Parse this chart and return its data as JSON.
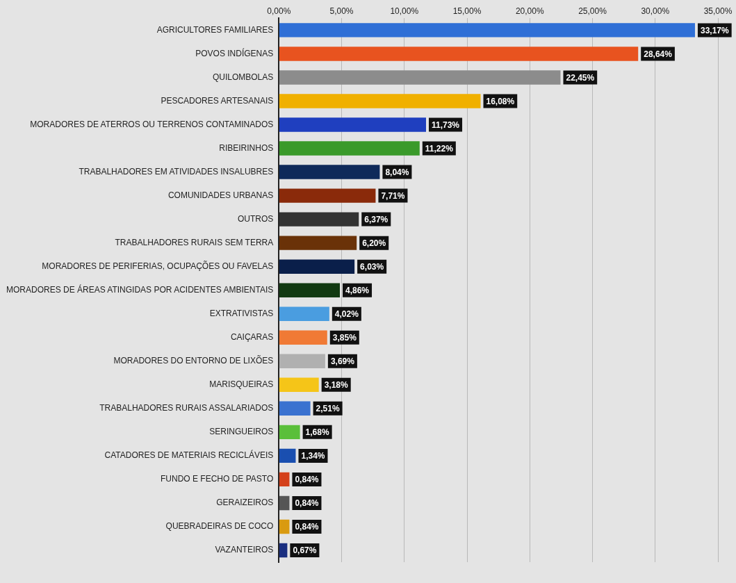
{
  "chart_data": {
    "type": "bar",
    "orientation": "horizontal",
    "categories": [
      "AGRICULTORES FAMILIARES",
      "POVOS INDÍGENAS",
      "QUILOMBOLAS",
      "PESCADORES ARTESANAIS",
      "MORADORES DE ATERROS OU TERRENOS CONTAMINADOS",
      "RIBEIRINHOS",
      "TRABALHADORES EM ATIVIDADES INSALUBRES",
      "COMUNIDADES URBANAS",
      "OUTROS",
      "TRABALHADORES RURAIS SEM TERRA",
      "MORADORES DE PERIFERIAS, OCUPAÇÕES OU FAVELAS",
      "MORADORES DE ÁREAS ATINGIDAS POR ACIDENTES AMBIENTAIS",
      "EXTRATIVISTAS",
      "CAIÇARAS",
      "MORADORES DO ENTORNO DE LIXÕES",
      "MARISQUEIRAS",
      "TRABALHADORES RURAIS ASSALARIADOS",
      "SERINGUEIROS",
      "CATADORES DE MATERIAIS RECICLÁVEIS",
      "FUNDO E FECHO DE PASTO",
      "GERAIZEIROS",
      "QUEBRADEIRAS DE COCO",
      "VAZANTEIROS"
    ],
    "values": [
      33.17,
      28.64,
      22.45,
      16.08,
      11.73,
      11.22,
      8.04,
      7.71,
      6.37,
      6.2,
      6.03,
      4.86,
      4.02,
      3.85,
      3.69,
      3.18,
      2.51,
      1.68,
      1.34,
      0.84,
      0.84,
      0.84,
      0.67
    ],
    "value_labels": [
      "33,17%",
      "28,64%",
      "22,45%",
      "16,08%",
      "11,73%",
      "11,22%",
      "8,04%",
      "7,71%",
      "6,37%",
      "6,20%",
      "6,03%",
      "4,86%",
      "4,02%",
      "3,85%",
      "3,69%",
      "3,18%",
      "2,51%",
      "1,68%",
      "1,34%",
      "0,84%",
      "0,84%",
      "0,84%",
      "0,67%"
    ],
    "colors": [
      "#2f6fd6",
      "#e8531f",
      "#8c8c8c",
      "#f0b000",
      "#1f3fbf",
      "#3a9a2a",
      "#0f2a5a",
      "#8a2a0a",
      "#333333",
      "#6a3208",
      "#0a1f4a",
      "#123a12",
      "#4a9de0",
      "#f07a35",
      "#b0b0b0",
      "#f5c518",
      "#3a72d0",
      "#5abf3a",
      "#1a4fb0",
      "#d4401a",
      "#555555",
      "#d99a10",
      "#1a2f80"
    ],
    "xlim": [
      0,
      35
    ],
    "xticks": [
      {
        "value": 0,
        "label": "0,00%"
      },
      {
        "value": 5,
        "label": "5,00%"
      },
      {
        "value": 10,
        "label": "10,00%"
      },
      {
        "value": 15,
        "label": "15,00%"
      },
      {
        "value": 20,
        "label": "20,00%"
      },
      {
        "value": 25,
        "label": "25,00%"
      },
      {
        "value": 30,
        "label": "30,00%"
      },
      {
        "value": 35,
        "label": "35,00%"
      }
    ],
    "grid": "x",
    "legend": false
  }
}
